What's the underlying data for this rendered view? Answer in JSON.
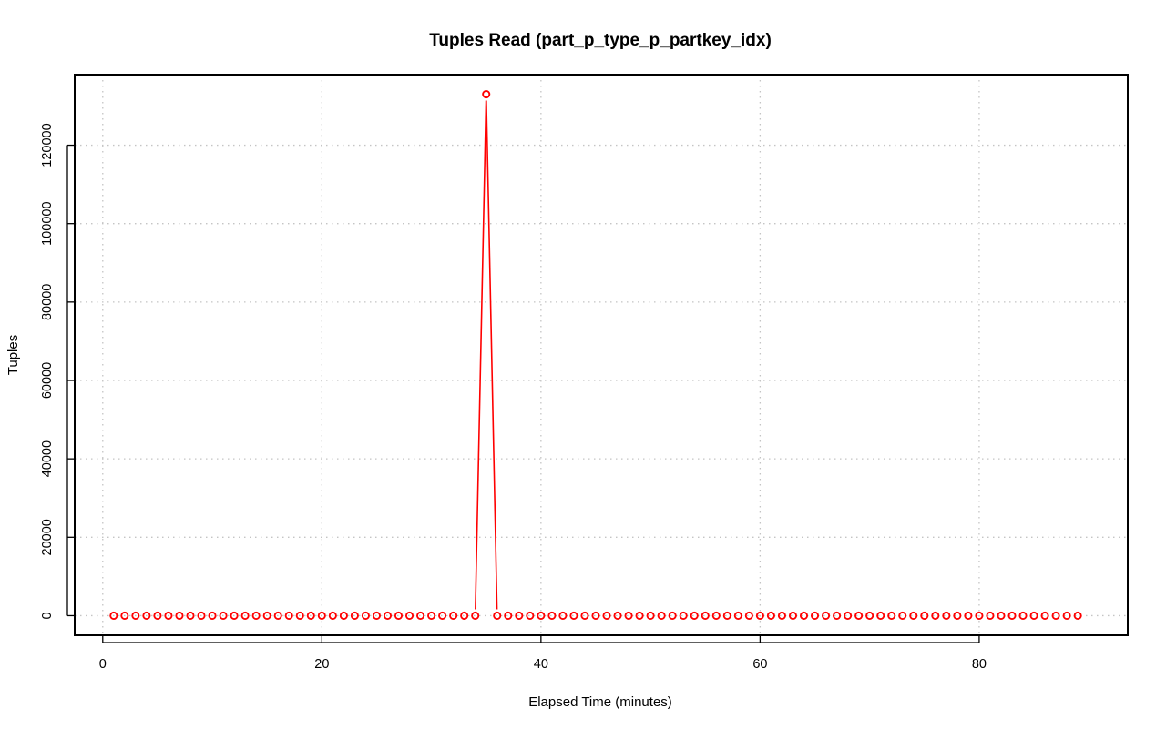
{
  "chart_data": {
    "type": "line",
    "title": "Tuples Read (part_p_type_p_partkey_idx)",
    "xlabel": "Elapsed Time (minutes)",
    "ylabel": "Tuples",
    "xlim": [
      -2.56,
      93.56
    ],
    "ylim": [
      -5000,
      138000
    ],
    "x_ticks": [
      0,
      20,
      40,
      60,
      80
    ],
    "y_ticks": [
      0,
      20000,
      40000,
      60000,
      80000,
      100000,
      120000
    ],
    "grid": true,
    "legend": "none",
    "series_color": "#ff0000",
    "markers": "open-circle",
    "x": [
      1,
      2,
      3,
      4,
      5,
      6,
      7,
      8,
      9,
      10,
      11,
      12,
      13,
      14,
      15,
      16,
      17,
      18,
      19,
      20,
      21,
      22,
      23,
      24,
      25,
      26,
      27,
      28,
      29,
      30,
      31,
      32,
      33,
      34,
      35,
      36,
      37,
      38,
      39,
      40,
      41,
      42,
      43,
      44,
      45,
      46,
      47,
      48,
      49,
      50,
      51,
      52,
      53,
      54,
      55,
      56,
      57,
      58,
      59,
      60,
      61,
      62,
      63,
      64,
      65,
      66,
      67,
      68,
      69,
      70,
      71,
      72,
      73,
      74,
      75,
      76,
      77,
      78,
      79,
      80,
      81,
      82,
      83,
      84,
      85,
      86,
      87,
      88,
      89
    ],
    "y": [
      0,
      0,
      0,
      0,
      0,
      0,
      0,
      0,
      0,
      0,
      0,
      0,
      0,
      0,
      0,
      0,
      0,
      0,
      0,
      0,
      0,
      0,
      0,
      0,
      0,
      0,
      0,
      0,
      0,
      0,
      0,
      0,
      0,
      0,
      133000,
      0,
      0,
      0,
      0,
      0,
      0,
      0,
      0,
      0,
      0,
      0,
      0,
      0,
      0,
      0,
      0,
      0,
      0,
      0,
      0,
      0,
      0,
      0,
      0,
      0,
      0,
      0,
      0,
      0,
      0,
      0,
      0,
      0,
      0,
      0,
      0,
      0,
      0,
      0,
      0,
      0,
      0,
      0,
      0,
      0,
      0,
      0,
      0,
      0,
      0,
      0,
      0,
      0,
      0
    ]
  }
}
